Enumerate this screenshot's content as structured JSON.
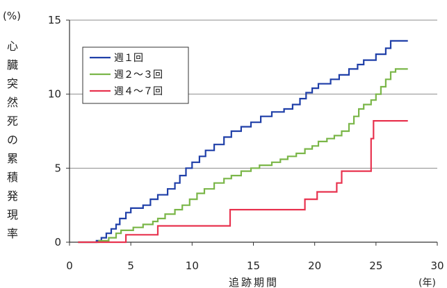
{
  "chart_data": {
    "type": "line",
    "step": true,
    "ylabel": "心臓突然死の累積発現率",
    "y_unit": "(%)",
    "xlabel": "追跡期間",
    "x_unit": "(年)",
    "xlim": [
      0,
      30
    ],
    "ylim": [
      0,
      15
    ],
    "xticks": [
      0,
      5,
      10,
      15,
      20,
      25,
      30
    ],
    "yticks": [
      0,
      5,
      10,
      15
    ],
    "grid": "horizontal",
    "legend_position": "top-left",
    "series": [
      {
        "name": "週１回",
        "color": "#1f3fa8",
        "points": [
          [
            0.7,
            0
          ],
          [
            1.8,
            0
          ],
          [
            2.2,
            0.1
          ],
          [
            2.6,
            0.3
          ],
          [
            3.0,
            0.6
          ],
          [
            3.4,
            0.9
          ],
          [
            3.8,
            1.2
          ],
          [
            4.1,
            1.6
          ],
          [
            4.6,
            2.0
          ],
          [
            5.0,
            2.3
          ],
          [
            6.0,
            2.5
          ],
          [
            6.6,
            2.9
          ],
          [
            7.2,
            3.2
          ],
          [
            8.0,
            3.6
          ],
          [
            8.6,
            4.0
          ],
          [
            9.0,
            4.5
          ],
          [
            9.5,
            5.0
          ],
          [
            10.0,
            5.4
          ],
          [
            10.6,
            5.8
          ],
          [
            11.1,
            6.2
          ],
          [
            11.8,
            6.6
          ],
          [
            12.6,
            7.1
          ],
          [
            13.2,
            7.5
          ],
          [
            14.0,
            7.8
          ],
          [
            14.8,
            8.1
          ],
          [
            15.6,
            8.5
          ],
          [
            16.5,
            8.8
          ],
          [
            17.5,
            9.0
          ],
          [
            18.2,
            9.3
          ],
          [
            18.8,
            9.7
          ],
          [
            19.3,
            10.1
          ],
          [
            19.8,
            10.4
          ],
          [
            20.3,
            10.7
          ],
          [
            21.3,
            11.0
          ],
          [
            22.0,
            11.3
          ],
          [
            22.8,
            11.7
          ],
          [
            23.5,
            12.0
          ],
          [
            24.0,
            12.3
          ],
          [
            25.0,
            12.7
          ],
          [
            25.8,
            13.1
          ],
          [
            26.2,
            13.6
          ],
          [
            27.6,
            13.6
          ]
        ]
      },
      {
        "name": "週２〜３回",
        "color": "#7ab648",
        "points": [
          [
            0.7,
            0
          ],
          [
            1.8,
            0
          ],
          [
            2.4,
            0.1
          ],
          [
            3.2,
            0.3
          ],
          [
            3.8,
            0.6
          ],
          [
            4.2,
            0.8
          ],
          [
            5.2,
            1.0
          ],
          [
            6.0,
            1.2
          ],
          [
            6.8,
            1.4
          ],
          [
            7.2,
            1.6
          ],
          [
            7.8,
            1.9
          ],
          [
            8.6,
            2.2
          ],
          [
            9.2,
            2.5
          ],
          [
            9.8,
            2.9
          ],
          [
            10.4,
            3.3
          ],
          [
            11.0,
            3.6
          ],
          [
            11.8,
            4.0
          ],
          [
            12.6,
            4.3
          ],
          [
            13.2,
            4.5
          ],
          [
            14.0,
            4.8
          ],
          [
            14.8,
            5.0
          ],
          [
            15.5,
            5.2
          ],
          [
            16.5,
            5.4
          ],
          [
            17.2,
            5.6
          ],
          [
            17.8,
            5.8
          ],
          [
            18.5,
            6.0
          ],
          [
            19.2,
            6.3
          ],
          [
            19.8,
            6.5
          ],
          [
            20.3,
            6.8
          ],
          [
            21.0,
            7.0
          ],
          [
            21.6,
            7.2
          ],
          [
            22.2,
            7.5
          ],
          [
            22.8,
            8.0
          ],
          [
            23.2,
            8.5
          ],
          [
            23.6,
            9.0
          ],
          [
            24.0,
            9.3
          ],
          [
            24.6,
            9.6
          ],
          [
            25.0,
            10.0
          ],
          [
            25.4,
            10.5
          ],
          [
            25.8,
            11.0
          ],
          [
            26.2,
            11.5
          ],
          [
            26.6,
            11.7
          ],
          [
            27.6,
            11.7
          ]
        ]
      },
      {
        "name": "週４〜７回",
        "color": "#e8334f",
        "points": [
          [
            0.7,
            0
          ],
          [
            2.0,
            0
          ],
          [
            4.6,
            0.5
          ],
          [
            7.2,
            1.1
          ],
          [
            12.8,
            1.1
          ],
          [
            13.1,
            2.2
          ],
          [
            18.8,
            2.2
          ],
          [
            19.2,
            2.9
          ],
          [
            20.2,
            3.4
          ],
          [
            21.8,
            4.0
          ],
          [
            22.2,
            4.8
          ],
          [
            24.6,
            7.0
          ],
          [
            24.8,
            8.2
          ],
          [
            27.6,
            8.2
          ]
        ]
      }
    ]
  }
}
